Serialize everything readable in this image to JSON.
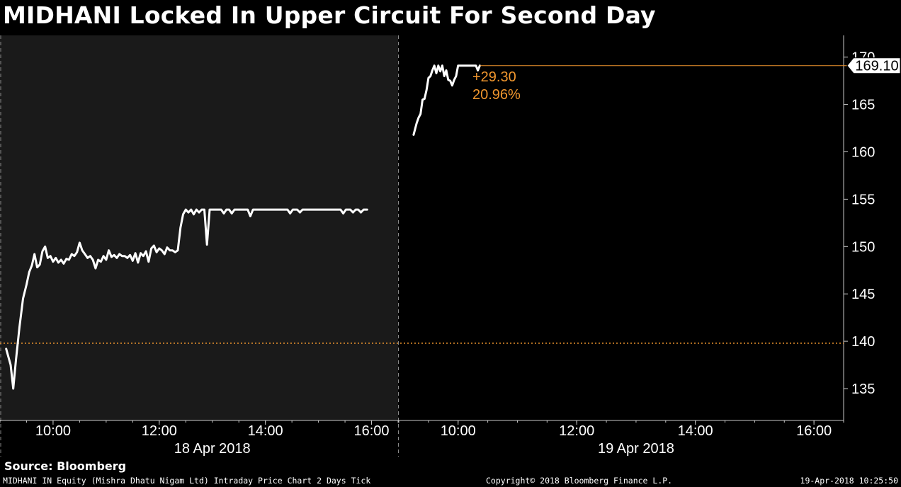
{
  "title": "MIDHANI Locked In Upper Circuit For Second Day",
  "source": "Source: Bloomberg",
  "footer": {
    "description": "MIDHANI IN Equity (Mishra Dhatu Nigam Ltd) Intraday Price Chart 2 Days  Tick",
    "copyright": "Copyright© 2018 Bloomberg Finance L.P.",
    "timestamp": "19-Apr-2018 10:25:50"
  },
  "colors": {
    "background": "#000000",
    "shaded_day": "#1a1a1a",
    "line": "#ffffff",
    "accent": "#f0962e",
    "axis": "#c8c8c8"
  },
  "chart_data": {
    "type": "line",
    "ylim": [
      131.5,
      171
    ],
    "yticks": [
      135,
      140,
      145,
      150,
      155,
      160,
      165,
      170
    ],
    "grid": false,
    "days": [
      {
        "label": "18 Apr 2018",
        "time_range": [
          "09:00",
          "16:30"
        ],
        "xticks": [
          "10:00",
          "12:00",
          "14:00",
          "16:00"
        ],
        "shaded": true
      },
      {
        "label": "19 Apr 2018",
        "time_range": [
          "09:00",
          "16:30"
        ],
        "xticks": [
          "10:00",
          "12:00",
          "14:00",
          "16:00"
        ],
        "shaded": false
      }
    ],
    "series": [
      {
        "day": 0,
        "points": [
          [
            "09:07",
            139.2
          ],
          [
            "09:12",
            137.5
          ],
          [
            "09:15",
            135.0
          ],
          [
            "09:18",
            138.0
          ],
          [
            "09:22",
            141.5
          ],
          [
            "09:26",
            144.5
          ],
          [
            "09:30",
            146.0
          ],
          [
            "09:33",
            147.3
          ],
          [
            "09:36",
            148.0
          ],
          [
            "09:39",
            149.2
          ],
          [
            "09:42",
            147.8
          ],
          [
            "09:45",
            148.1
          ],
          [
            "09:48",
            149.5
          ],
          [
            "09:51",
            150.0
          ],
          [
            "09:54",
            148.8
          ],
          [
            "09:57",
            149.0
          ],
          [
            "10:00",
            148.4
          ],
          [
            "10:03",
            148.8
          ],
          [
            "10:06",
            148.3
          ],
          [
            "10:09",
            148.6
          ],
          [
            "10:12",
            148.2
          ],
          [
            "10:15",
            148.7
          ],
          [
            "10:18",
            148.6
          ],
          [
            "10:21",
            149.2
          ],
          [
            "10:24",
            149.0
          ],
          [
            "10:27",
            149.4
          ],
          [
            "10:30",
            150.4
          ],
          [
            "10:33",
            149.6
          ],
          [
            "10:36",
            149.2
          ],
          [
            "10:39",
            148.8
          ],
          [
            "10:42",
            149.0
          ],
          [
            "10:45",
            148.6
          ],
          [
            "10:48",
            147.7
          ],
          [
            "10:51",
            148.6
          ],
          [
            "10:54",
            148.4
          ],
          [
            "10:57",
            149.0
          ],
          [
            "11:00",
            148.6
          ],
          [
            "11:03",
            149.6
          ],
          [
            "11:06",
            148.9
          ],
          [
            "11:09",
            149.1
          ],
          [
            "11:12",
            148.8
          ],
          [
            "11:15",
            149.2
          ],
          [
            "11:18",
            149.0
          ],
          [
            "11:21",
            149.0
          ],
          [
            "11:24",
            148.8
          ],
          [
            "11:27",
            149.1
          ],
          [
            "11:30",
            148.5
          ],
          [
            "11:33",
            149.3
          ],
          [
            "11:36",
            148.3
          ],
          [
            "11:39",
            149.3
          ],
          [
            "11:42",
            149.0
          ],
          [
            "11:45",
            149.5
          ],
          [
            "11:48",
            148.4
          ],
          [
            "11:51",
            149.8
          ],
          [
            "11:54",
            150.1
          ],
          [
            "11:57",
            149.4
          ],
          [
            "12:00",
            149.8
          ],
          [
            "12:03",
            149.6
          ],
          [
            "12:06",
            149.2
          ],
          [
            "12:09",
            149.9
          ],
          [
            "12:12",
            149.6
          ],
          [
            "12:15",
            149.6
          ],
          [
            "12:18",
            149.4
          ],
          [
            "12:21",
            149.6
          ],
          [
            "12:24",
            152.0
          ],
          [
            "12:27",
            153.4
          ],
          [
            "12:30",
            153.9
          ],
          [
            "12:33",
            153.6
          ],
          [
            "12:36",
            153.9
          ],
          [
            "12:39",
            153.4
          ],
          [
            "12:42",
            153.9
          ],
          [
            "12:45",
            153.6
          ],
          [
            "12:48",
            153.9
          ],
          [
            "12:51",
            153.9
          ],
          [
            "12:54",
            150.2
          ],
          [
            "12:57",
            153.9
          ],
          [
            "13:00",
            153.9
          ],
          [
            "13:05",
            153.9
          ],
          [
            "13:10",
            153.9
          ],
          [
            "13:13",
            153.5
          ],
          [
            "13:16",
            153.9
          ],
          [
            "13:19",
            153.9
          ],
          [
            "13:22",
            153.5
          ],
          [
            "13:25",
            153.9
          ],
          [
            "13:30",
            153.9
          ],
          [
            "13:35",
            153.9
          ],
          [
            "13:40",
            153.9
          ],
          [
            "13:43",
            153.2
          ],
          [
            "13:46",
            153.9
          ],
          [
            "13:50",
            153.9
          ],
          [
            "14:00",
            153.9
          ],
          [
            "14:10",
            153.9
          ],
          [
            "14:20",
            153.9
          ],
          [
            "14:25",
            153.9
          ],
          [
            "14:28",
            153.5
          ],
          [
            "14:31",
            153.9
          ],
          [
            "14:36",
            153.9
          ],
          [
            "14:39",
            153.6
          ],
          [
            "14:42",
            153.9
          ],
          [
            "14:50",
            153.9
          ],
          [
            "15:00",
            153.9
          ],
          [
            "15:10",
            153.9
          ],
          [
            "15:20",
            153.9
          ],
          [
            "15:25",
            153.9
          ],
          [
            "15:28",
            153.5
          ],
          [
            "15:31",
            153.9
          ],
          [
            "15:36",
            153.9
          ],
          [
            "15:39",
            153.6
          ],
          [
            "15:42",
            153.9
          ],
          [
            "15:45",
            153.9
          ],
          [
            "15:48",
            153.6
          ],
          [
            "15:51",
            153.9
          ],
          [
            "15:55",
            153.9
          ]
        ]
      },
      {
        "day": 1,
        "points": [
          [
            "09:15",
            161.8
          ],
          [
            "09:18",
            163.0
          ],
          [
            "09:20",
            163.6
          ],
          [
            "09:22",
            164.0
          ],
          [
            "09:24",
            165.5
          ],
          [
            "09:26",
            165.6
          ],
          [
            "09:28",
            166.5
          ],
          [
            "09:30",
            167.8
          ],
          [
            "09:32",
            168.0
          ],
          [
            "09:34",
            168.6
          ],
          [
            "09:36",
            169.1
          ],
          [
            "09:38",
            168.3
          ],
          [
            "09:40",
            169.1
          ],
          [
            "09:42",
            168.5
          ],
          [
            "09:44",
            169.1
          ],
          [
            "09:46",
            168.0
          ],
          [
            "09:48",
            168.6
          ],
          [
            "09:50",
            167.6
          ],
          [
            "09:52",
            167.5
          ],
          [
            "09:54",
            167.0
          ],
          [
            "09:56",
            167.6
          ],
          [
            "09:58",
            168.0
          ],
          [
            "10:00",
            169.1
          ],
          [
            "10:05",
            169.1
          ],
          [
            "10:10",
            169.1
          ],
          [
            "10:15",
            169.1
          ],
          [
            "10:18",
            169.1
          ],
          [
            "10:20",
            168.6
          ],
          [
            "10:22",
            169.1
          ]
        ]
      }
    ],
    "reference_line": {
      "value": 139.8,
      "style": "dotted"
    },
    "last_price": {
      "value": 169.1,
      "label": "169.10"
    },
    "change": {
      "absolute": "+29.30",
      "percent": "20.96%"
    }
  }
}
